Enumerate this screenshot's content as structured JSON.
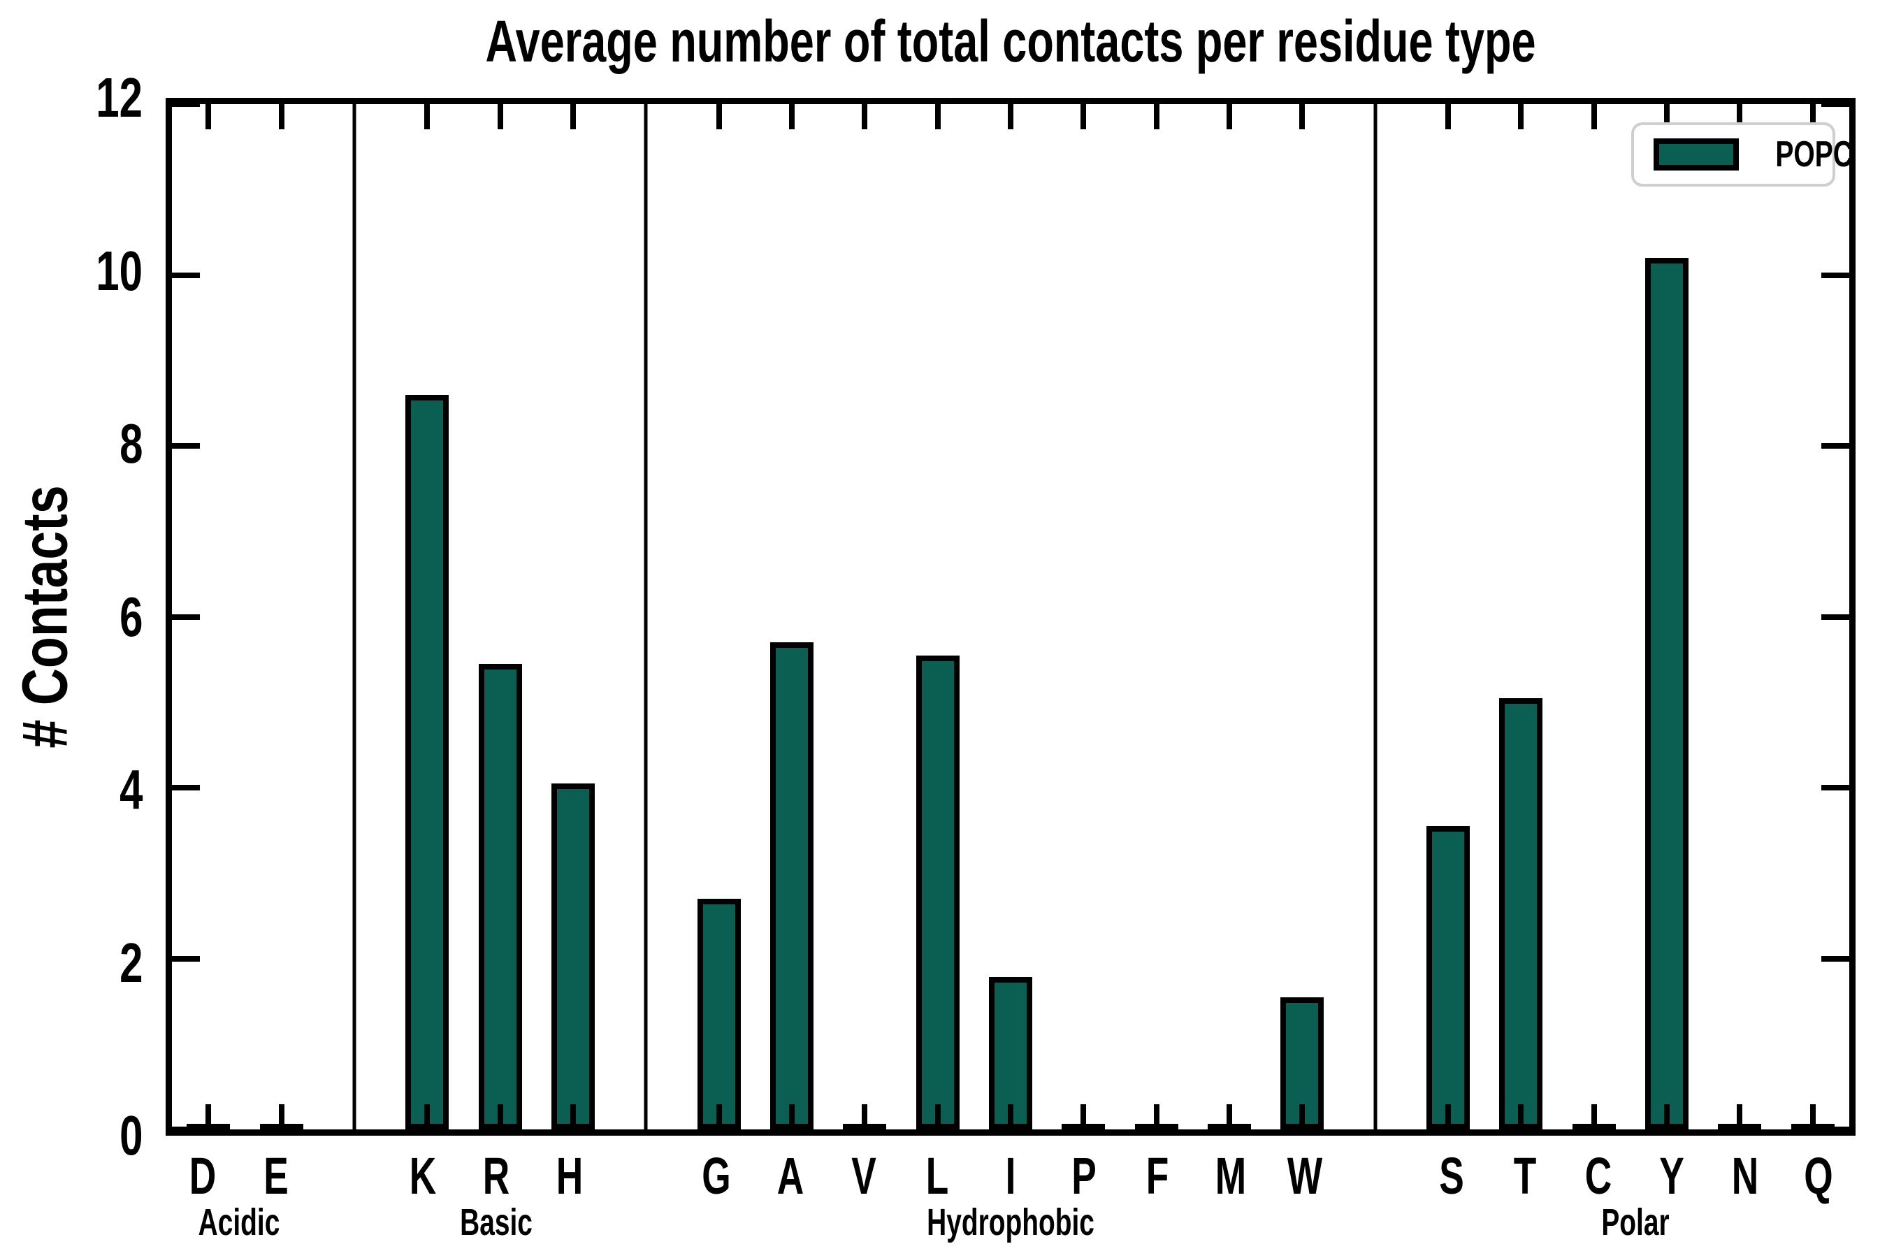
{
  "title": "Average number of total contacts per residue type",
  "ylabel": "# Contacts",
  "legend": {
    "label": "POPC"
  },
  "colors": {
    "bar_fill": "#0a5e52",
    "bar_edge": "#000000",
    "axis": "#000000",
    "legend_border": "#cfcfcf",
    "background": "#ffffff"
  },
  "chart_data": {
    "type": "bar",
    "title": "Average number of total contacts per residue type",
    "xlabel": "",
    "ylabel": "# Contacts",
    "ylim": [
      0,
      12
    ],
    "yticks": [
      0,
      2,
      4,
      6,
      8,
      10,
      12
    ],
    "grid": false,
    "legend_position": "upper right",
    "series_name": "POPC",
    "groups": [
      {
        "label": "Acidic",
        "categories": [
          "D",
          "E"
        ],
        "values": [
          0.02,
          0.02
        ]
      },
      {
        "label": "Basic",
        "categories": [
          "K",
          "R",
          "H"
        ],
        "values": [
          8.6,
          5.45,
          4.05
        ]
      },
      {
        "label": "Hydrophobic",
        "categories": [
          "G",
          "A",
          "V",
          "L",
          "I",
          "P",
          "F",
          "M",
          "W"
        ],
        "values": [
          2.7,
          5.7,
          0.02,
          5.55,
          1.78,
          0.02,
          0.02,
          0.02,
          1.55
        ]
      },
      {
        "label": "Polar",
        "categories": [
          "S",
          "T",
          "C",
          "Y",
          "N",
          "Q"
        ],
        "values": [
          3.55,
          5.05,
          0.02,
          10.2,
          0.02,
          0.02
        ]
      }
    ]
  }
}
